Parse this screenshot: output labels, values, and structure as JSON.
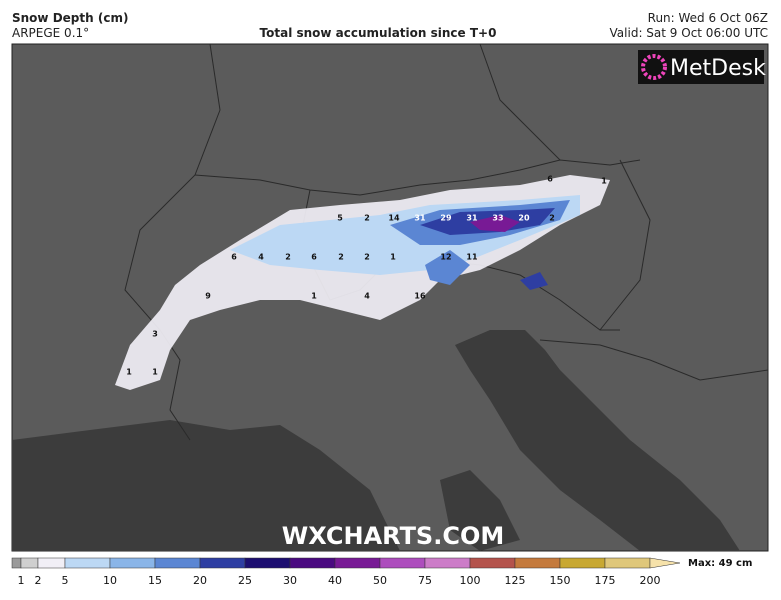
{
  "header": {
    "title": "Snow Depth (cm)",
    "model": "ARPEGE 0.1°",
    "subtitle": "Total snow accumulation since T+0",
    "run": "Run: Wed 6 Oct 06Z",
    "valid": "Valid: Sat 9 Oct 06:00 UTC"
  },
  "logo": "MetDesk",
  "watermark": "WXCHARTS.COM",
  "map_labels": [
    6,
    1,
    5,
    2,
    14,
    31,
    29,
    31,
    33,
    20,
    2,
    6,
    4,
    2,
    6,
    2,
    2,
    1,
    12,
    11,
    9,
    1,
    4,
    16,
    3,
    1,
    1
  ],
  "colorbar": {
    "ticks": [
      1,
      2,
      5,
      10,
      15,
      20,
      25,
      30,
      40,
      50,
      75,
      100,
      125,
      150,
      175,
      200
    ],
    "colors": [
      "#9a9a9a",
      "#cfcfcf",
      "#f1eff6",
      "#bcd8f4",
      "#8ab5e8",
      "#5b86d3",
      "#2e3ea2",
      "#1c0e70",
      "#4a0a80",
      "#781a95",
      "#ad4dbd",
      "#cc7cc8",
      "#b4534c",
      "#c47a3d",
      "#c8a832",
      "#dfc77a",
      "#f6e2aa"
    ],
    "max": "Max: 49 cm"
  }
}
